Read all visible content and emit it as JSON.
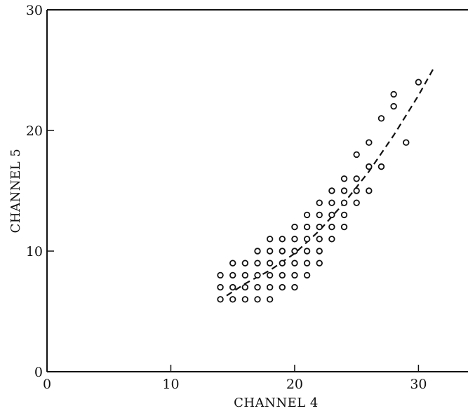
{
  "chart_data": {
    "type": "scatter",
    "title": "",
    "xlabel": "CHANNEL 4",
    "ylabel": "CHANNEL 5",
    "xlim": [
      0,
      34
    ],
    "ylim": [
      0,
      30
    ],
    "xticks": [
      0,
      10,
      20,
      30
    ],
    "yticks": [
      0,
      10,
      20,
      30
    ],
    "grid": false,
    "legend": "none",
    "marker": "open-circle",
    "colors": {
      "ink": "#111111",
      "background": "#ffffff"
    },
    "points": [
      [
        14,
        6
      ],
      [
        14,
        7
      ],
      [
        14,
        8
      ],
      [
        15,
        6
      ],
      [
        15,
        7
      ],
      [
        15,
        8
      ],
      [
        15,
        9
      ],
      [
        16,
        6
      ],
      [
        16,
        7
      ],
      [
        16,
        8
      ],
      [
        16,
        9
      ],
      [
        17,
        6
      ],
      [
        17,
        7
      ],
      [
        17,
        8
      ],
      [
        17,
        9
      ],
      [
        17,
        10
      ],
      [
        18,
        6
      ],
      [
        18,
        7
      ],
      [
        18,
        8
      ],
      [
        18,
        9
      ],
      [
        18,
        10
      ],
      [
        18,
        11
      ],
      [
        19,
        7
      ],
      [
        19,
        8
      ],
      [
        19,
        9
      ],
      [
        19,
        10
      ],
      [
        19,
        11
      ],
      [
        20,
        7
      ],
      [
        20,
        8
      ],
      [
        20,
        9
      ],
      [
        20,
        10
      ],
      [
        20,
        11
      ],
      [
        20,
        12
      ],
      [
        21,
        8
      ],
      [
        21,
        9
      ],
      [
        21,
        10
      ],
      [
        21,
        11
      ],
      [
        21,
        12
      ],
      [
        21,
        13
      ],
      [
        22,
        9
      ],
      [
        22,
        10
      ],
      [
        22,
        11
      ],
      [
        22,
        12
      ],
      [
        22,
        13
      ],
      [
        22,
        14
      ],
      [
        23,
        11
      ],
      [
        23,
        12
      ],
      [
        23,
        13
      ],
      [
        23,
        14
      ],
      [
        23,
        15
      ],
      [
        24,
        12
      ],
      [
        24,
        13
      ],
      [
        24,
        14
      ],
      [
        24,
        15
      ],
      [
        24,
        16
      ],
      [
        25,
        14
      ],
      [
        25,
        15
      ],
      [
        25,
        16
      ],
      [
        25,
        18
      ],
      [
        26,
        15
      ],
      [
        26,
        17
      ],
      [
        26,
        19
      ],
      [
        27,
        17
      ],
      [
        27,
        21
      ],
      [
        28,
        22
      ],
      [
        28,
        23
      ],
      [
        29,
        19
      ],
      [
        30,
        24
      ]
    ],
    "fit_line": {
      "style": "dashed",
      "x": [
        14.5,
        16,
        18,
        20,
        22,
        24,
        26,
        28,
        30,
        31.3
      ],
      "y": [
        6.3,
        7.3,
        8.4,
        9.8,
        11.7,
        14.0,
        16.6,
        19.6,
        22.9,
        25.3
      ]
    }
  }
}
